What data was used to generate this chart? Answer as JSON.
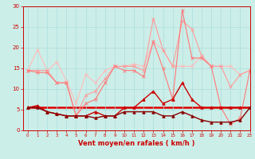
{
  "title": "",
  "xlabel": "Vent moyen/en rafales ( km/h )",
  "ylabel": "",
  "background_color": "#cceee8",
  "grid_color": "#aadddd",
  "xlim": [
    -0.5,
    23
  ],
  "ylim": [
    0,
    30
  ],
  "yticks": [
    0,
    5,
    10,
    15,
    20,
    25,
    30
  ],
  "xticks": [
    0,
    1,
    2,
    3,
    4,
    5,
    6,
    7,
    8,
    9,
    10,
    11,
    12,
    13,
    14,
    15,
    16,
    17,
    18,
    19,
    20,
    21,
    22,
    23
  ],
  "series": [
    {
      "x": [
        0,
        1,
        2,
        3,
        4,
        5,
        6,
        7,
        8,
        9,
        10,
        11,
        12,
        13,
        14,
        15,
        16,
        17,
        18,
        19,
        20,
        21,
        22,
        23
      ],
      "y": [
        14.5,
        19.5,
        14.5,
        16.5,
        12.0,
        6.5,
        13.5,
        11.5,
        14.5,
        15.5,
        15.5,
        16.0,
        15.5,
        21.5,
        19.5,
        15.5,
        15.5,
        15.5,
        18.0,
        15.5,
        15.5,
        15.5,
        13.5,
        14.5
      ],
      "color": "#ffbbbb",
      "marker": "x",
      "linewidth": 0.8,
      "markersize": 2.5,
      "zorder": 2
    },
    {
      "x": [
        0,
        1,
        2,
        3,
        4,
        5,
        6,
        7,
        8,
        9,
        10,
        11,
        12,
        13,
        14,
        15,
        16,
        17,
        18,
        19,
        20,
        21,
        22,
        23
      ],
      "y": [
        14.5,
        14.5,
        14.5,
        11.5,
        11.5,
        3.5,
        8.5,
        9.5,
        12.5,
        15.5,
        15.5,
        15.5,
        14.5,
        27.0,
        19.5,
        15.5,
        26.5,
        24.5,
        18.0,
        15.5,
        15.5,
        10.5,
        13.5,
        14.5
      ],
      "color": "#ff9999",
      "marker": "x",
      "linewidth": 0.8,
      "markersize": 2.5,
      "zorder": 2
    },
    {
      "x": [
        0,
        1,
        2,
        3,
        4,
        5,
        6,
        7,
        8,
        9,
        10,
        11,
        12,
        13,
        14,
        15,
        16,
        17,
        18,
        19,
        20,
        21,
        22,
        23
      ],
      "y": [
        14.5,
        14.0,
        14.0,
        11.5,
        11.5,
        3.5,
        6.5,
        7.5,
        11.5,
        15.5,
        14.5,
        14.5,
        13.0,
        21.5,
        15.0,
        7.5,
        29.0,
        17.5,
        17.5,
        15.5,
        5.5,
        1.5,
        3.0,
        14.5
      ],
      "color": "#ff7777",
      "marker": "x",
      "linewidth": 0.8,
      "markersize": 2.5,
      "zorder": 2
    },
    {
      "x": [
        0,
        1,
        2,
        3,
        4,
        5,
        6,
        7,
        8,
        9,
        10,
        11,
        12,
        13,
        14,
        15,
        16,
        17,
        18,
        19,
        20,
        21,
        22,
        23
      ],
      "y": [
        5.5,
        6.0,
        4.5,
        4.0,
        3.5,
        3.5,
        3.5,
        4.5,
        3.5,
        3.5,
        5.5,
        5.5,
        7.5,
        9.5,
        6.5,
        7.5,
        11.5,
        7.5,
        5.5,
        5.5,
        5.5,
        5.5,
        5.5,
        5.5
      ],
      "color": "#cc0000",
      "marker": "^",
      "linewidth": 1.0,
      "markersize": 2.5,
      "zorder": 3
    },
    {
      "x": [
        0,
        1,
        2,
        3,
        4,
        5,
        6,
        7,
        8,
        9,
        10,
        11,
        12,
        13,
        14,
        15,
        16,
        17,
        18,
        19,
        20,
        21,
        22,
        23
      ],
      "y": [
        5.5,
        5.5,
        4.5,
        4.0,
        3.5,
        3.5,
        3.5,
        3.0,
        3.5,
        3.5,
        4.5,
        4.5,
        4.5,
        4.5,
        3.5,
        3.5,
        4.5,
        3.5,
        2.5,
        2.0,
        2.0,
        2.0,
        2.5,
        5.5
      ],
      "color": "#880000",
      "marker": "^",
      "linewidth": 1.0,
      "markersize": 2.5,
      "zorder": 3
    },
    {
      "x": [
        0,
        1,
        2,
        3,
        4,
        5,
        6,
        7,
        8,
        9,
        10,
        11,
        12,
        13,
        14,
        15,
        16,
        17,
        18,
        19,
        20,
        21,
        22,
        23
      ],
      "y": [
        5.5,
        5.5,
        5.5,
        5.5,
        5.5,
        5.5,
        5.5,
        5.5,
        5.5,
        5.5,
        5.5,
        5.5,
        5.5,
        5.5,
        5.5,
        5.5,
        5.5,
        5.5,
        5.5,
        5.5,
        5.5,
        5.5,
        5.5,
        5.5
      ],
      "color": "#dd0000",
      "marker": null,
      "linewidth": 1.8,
      "markersize": 0,
      "zorder": 1
    }
  ],
  "tick_color": "#cc0000",
  "xlabel_fontsize": 6,
  "xlabel_color": "#cc0000",
  "xtick_fontsize": 4.0,
  "ytick_fontsize": 5.0
}
